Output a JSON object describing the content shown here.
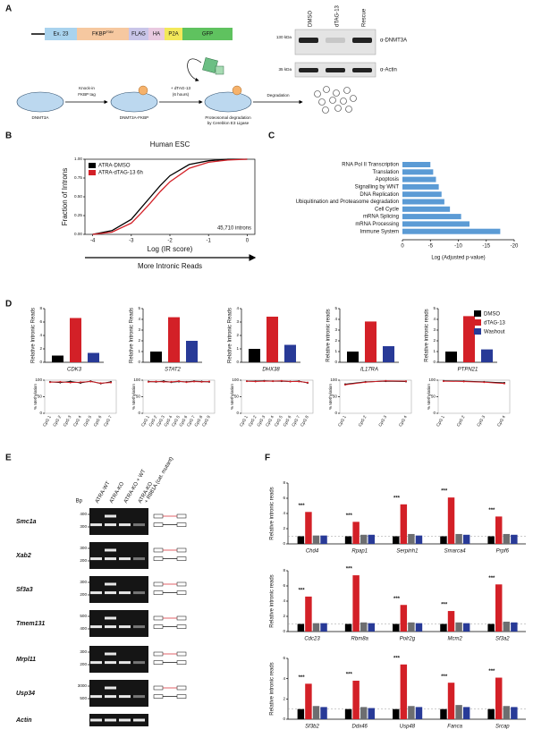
{
  "labels": [
    "A",
    "B",
    "C",
    "D",
    "E",
    "F"
  ],
  "panel_a": {
    "construct": [
      {
        "label": "Ex. 23",
        "color": "#a9d3ee"
      },
      {
        "label": "FKBP",
        "sup": "F36V",
        "color": "#f6c8a0"
      },
      {
        "label": "FLAG",
        "color": "#c9c5e8"
      },
      {
        "label": "HA",
        "color": "#e9c9e0"
      },
      {
        "label": "P2A",
        "color": "#f3e85a"
      },
      {
        "label": "GFP",
        "color": "#5fc25f"
      }
    ],
    "blot": {
      "lanes": [
        "DMSO",
        "dTAG-13",
        "Rescue"
      ],
      "markers": [
        "130 kDa",
        "35 kDa"
      ],
      "antibodies": [
        "α-DNMT3A",
        "α-Actin"
      ]
    },
    "workflow": {
      "states": [
        "DNMT3A",
        "DNMT3A-FKBP"
      ],
      "degradation_label": [
        "Proteosomal degradation",
        "by Cereblon E3 Ligase"
      ],
      "step1": [
        "Knock-in",
        "FKBP tag"
      ],
      "step2": [
        "+ dTAG-13",
        "(6 hours)"
      ],
      "step3": "Degradation"
    }
  },
  "legend_d": {
    "names": [
      "DMSO",
      "dTAG-13",
      "Washout"
    ],
    "colors": [
      "#000000",
      "#d32027",
      "#283a97"
    ]
  },
  "panel_e": {
    "bp_header": "Bp",
    "lanes": [
      [
        "ATRA-WT"
      ],
      [
        "ATRA-KO"
      ],
      [
        "ATRA-KO + WT"
      ],
      [
        "ATRA-KO",
        "+ R881A (cat. mutant)"
      ]
    ],
    "genes": [
      "Smc1a",
      "Xab2",
      "Sf3a3",
      "Tmem131",
      "Mrpl11",
      "Usp34",
      "Actin"
    ],
    "bp": [
      [
        400,
        300
      ],
      [
        300,
        200
      ],
      [
        300,
        200
      ],
      [
        500,
        400
      ],
      [
        300,
        200
      ],
      [
        3000,
        500
      ],
      []
    ]
  },
  "chart_data": [
    {
      "type": "line",
      "title": "Human ESC",
      "xlabel": "Log (IR score)",
      "ylabel": "Fraction of Introns",
      "annotation": "45,710 introns",
      "arrow_label": "More Intronic Reads",
      "x": [
        -4,
        -3.5,
        -3,
        -2.75,
        -2.5,
        -2.25,
        -2,
        -1.5,
        -1,
        -0.5,
        0
      ],
      "series": [
        {
          "name": "ATRA-DMSO",
          "color": "#000000",
          "values": [
            0,
            0.05,
            0.2,
            0.35,
            0.5,
            0.65,
            0.78,
            0.93,
            0.98,
            1,
            1
          ]
        },
        {
          "name": "ATRA-dTAG-13 6h",
          "color": "#d32027",
          "values": [
            0,
            0.03,
            0.15,
            0.28,
            0.42,
            0.57,
            0.7,
            0.88,
            0.96,
            0.99,
            1
          ]
        }
      ],
      "xlim": [
        -4.2,
        0.2
      ],
      "xticks": [
        -4,
        -3,
        -2,
        -1,
        0
      ],
      "ylim": [
        0,
        1
      ],
      "yticks": [
        {
          "value": 0,
          "label": "0.00"
        },
        {
          "value": 0.25,
          "label": "0.25"
        },
        {
          "value": 0.5,
          "label": "0.50"
        },
        {
          "value": 0.75,
          "label": "0.75"
        },
        {
          "value": 1,
          "label": "1.00"
        }
      ]
    },
    {
      "type": "barh",
      "xlabel": "Log (Adjusted p-value)",
      "color": "#5b9bd5",
      "categories": [
        "RNA Pol II Transcription",
        "Translation",
        "Apoptosis",
        "Signalling by WNT",
        "DNA Replication",
        "Ubiquitination and Proteasome degradation",
        "Cell Cycle",
        "mRNA Splicing",
        "mRNA Processing",
        "Immune System"
      ],
      "values": [
        -5,
        -5.5,
        -6,
        -6.5,
        -7,
        -7.5,
        -8.5,
        -10.5,
        -12,
        -17.5
      ],
      "xlim": [
        0,
        -20
      ],
      "xticks": [
        0,
        -5,
        -10,
        -15,
        -20
      ]
    },
    {
      "type": "bar",
      "xlabel": "CDK3",
      "ylabel": "Relative Intronic Reads",
      "values": [
        1,
        6.6,
        1.4
      ],
      "colors": [
        "#000000",
        "#d32027",
        "#283a97"
      ],
      "ylim": [
        0,
        8
      ],
      "yticks": [
        0,
        2,
        4,
        6,
        8
      ]
    },
    {
      "type": "bar",
      "xlabel": "STAT2",
      "ylabel": "Relative Intronic Reads",
      "values": [
        1,
        4.2,
        2
      ],
      "colors": [
        "#000000",
        "#d32027",
        "#283a97"
      ],
      "ylim": [
        0,
        5
      ],
      "yticks": [
        0,
        1,
        2,
        3,
        4,
        5
      ]
    },
    {
      "type": "bar",
      "xlabel": "DHX38",
      "ylabel": "Relative Intronic Reads",
      "values": [
        1,
        3.4,
        1.3
      ],
      "colors": [
        "#000000",
        "#d32027",
        "#283a97"
      ],
      "ylim": [
        0,
        4
      ],
      "yticks": [
        0,
        1,
        2,
        3,
        4
      ]
    },
    {
      "type": "bar",
      "xlabel": "IL17RA",
      "ylabel": "Relative intronic reads",
      "values": [
        1,
        3.8,
        1.5
      ],
      "colors": [
        "#000000",
        "#d32027",
        "#283a97"
      ],
      "ylim": [
        0,
        5
      ],
      "yticks": [
        0,
        1,
        2,
        3,
        4,
        5
      ]
    },
    {
      "type": "bar",
      "xlabel": "PTPN21",
      "ylabel": "Relative intronic reads",
      "values": [
        1,
        4.3,
        1.2
      ],
      "colors": [
        "#000000",
        "#d32027",
        "#283a97"
      ],
      "ylim": [
        0,
        5
      ],
      "yticks": [
        0,
        1,
        2,
        3,
        4,
        5
      ]
    },
    {
      "type": "line",
      "ylabel": "% Methylation",
      "categories": [
        "CpG 1",
        "CpG 2",
        "CpG 3",
        "CpG 4",
        "CpG 5",
        "CpG 6",
        "CpG 7"
      ],
      "series": [
        {
          "color": "#000000",
          "values": [
            95,
            93,
            96,
            92,
            97,
            90,
            95
          ]
        },
        {
          "color": "#d32027",
          "values": [
            94,
            95,
            93,
            94,
            96,
            91,
            93
          ]
        }
      ],
      "ylim": [
        0,
        100
      ],
      "yticks": [
        0,
        50,
        100
      ]
    },
    {
      "type": "line",
      "ylabel": "% Methylation",
      "categories": [
        "CpG 1",
        "CpG 2",
        "CpG 3",
        "CpG 4",
        "CpG 5",
        "CpG 6",
        "CpG 7",
        "CpG 8",
        "CpG 9"
      ],
      "series": [
        {
          "color": "#000000",
          "values": [
            96,
            95,
            97,
            94,
            96,
            95,
            97,
            96,
            95
          ]
        },
        {
          "color": "#d32027",
          "values": [
            95,
            96,
            95,
            95,
            97,
            94,
            96,
            95,
            96
          ]
        }
      ],
      "ylim": [
        0,
        100
      ],
      "yticks": [
        0,
        50,
        100
      ]
    },
    {
      "type": "line",
      "ylabel": "% Methylation",
      "categories": [
        "CpG 1",
        "CpG 2",
        "CpG 3",
        "CpG 4",
        "CpG 5",
        "CpG 6",
        "CpG 7",
        "CpG 8"
      ],
      "series": [
        {
          "color": "#000000",
          "values": [
            97,
            97,
            98,
            97,
            97,
            96,
            97,
            92
          ]
        },
        {
          "color": "#d32027",
          "values": [
            97,
            96,
            97,
            97,
            98,
            96,
            96,
            93
          ]
        }
      ],
      "ylim": [
        0,
        100
      ],
      "yticks": [
        0,
        50,
        100
      ]
    },
    {
      "type": "line",
      "ylabel": "% Methylation",
      "categories": [
        "CpG 1",
        "CpG 2",
        "CpG 3",
        "CpG 4"
      ],
      "series": [
        {
          "color": "#000000",
          "values": [
            88,
            95,
            97,
            96
          ]
        },
        {
          "color": "#d32027",
          "values": [
            86,
            94,
            98,
            97
          ]
        }
      ],
      "ylim": [
        0,
        100
      ],
      "yticks": [
        0,
        50,
        100
      ]
    },
    {
      "type": "line",
      "ylabel": "% Methylation",
      "categories": [
        "CpG 1",
        "CpG 2",
        "CpG 3",
        "CpG 4"
      ],
      "series": [
        {
          "color": "#000000",
          "values": [
            98,
            97,
            95,
            92
          ]
        },
        {
          "color": "#d32027",
          "values": [
            97,
            96,
            94,
            90
          ]
        }
      ],
      "ylim": [
        0,
        100
      ],
      "yticks": [
        0,
        50,
        100
      ]
    },
    {
      "type": "grouped_bar",
      "ylabel": "Relative intronic reads",
      "categories": [
        "Chd4",
        "Rpap1",
        "Serpinh1",
        "Smarca4",
        "Prpf6"
      ],
      "annotations": [
        "***",
        "***",
        "***",
        "***",
        "***"
      ],
      "series": [
        {
          "color": "#000000",
          "values": [
            1,
            1,
            1,
            1,
            1
          ]
        },
        {
          "color": "#d32027",
          "values": [
            4.2,
            2.9,
            5.2,
            6.1,
            3.6
          ]
        },
        {
          "color": "#6d6e70",
          "values": [
            1.1,
            1.2,
            1.3,
            1.3,
            1.3
          ]
        },
        {
          "color": "#283a97",
          "values": [
            1.1,
            1.2,
            1.1,
            1.2,
            1.2
          ]
        }
      ],
      "ylim": [
        0,
        8
      ],
      "yticks": [
        0,
        2,
        4,
        6,
        8
      ]
    },
    {
      "type": "grouped_bar",
      "ylabel": "Relative intronic reads",
      "categories": [
        "Cdc23",
        "Rbm8a",
        "Polr2g",
        "Mcm2",
        "Sf3a2"
      ],
      "annotations": [
        "***",
        "***",
        "***",
        "***",
        "***"
      ],
      "series": [
        {
          "color": "#000000",
          "values": [
            1,
            1,
            1,
            1,
            1
          ]
        },
        {
          "color": "#d32027",
          "values": [
            4.6,
            7.4,
            3.5,
            2.7,
            6.2
          ]
        },
        {
          "color": "#6d6e70",
          "values": [
            1.1,
            1.2,
            1.2,
            1.2,
            1.3
          ]
        },
        {
          "color": "#283a97",
          "values": [
            1.1,
            1.1,
            1.1,
            1.1,
            1.2
          ]
        }
      ],
      "ylim": [
        0,
        8
      ],
      "yticks": [
        0,
        2,
        4,
        6,
        8
      ]
    },
    {
      "type": "grouped_bar",
      "ylabel": "Relative intronic reads",
      "categories": [
        "Sf3b2",
        "Ddx46",
        "Usp48",
        "Fanca",
        "Srcap"
      ],
      "annotations": [
        "***",
        "***",
        "***",
        "***",
        "***"
      ],
      "series": [
        {
          "color": "#000000",
          "values": [
            1,
            1,
            1,
            1,
            1
          ]
        },
        {
          "color": "#d32027",
          "values": [
            3.5,
            3.8,
            5.4,
            3.6,
            4.1
          ]
        },
        {
          "color": "#6d6e70",
          "values": [
            1.3,
            1.2,
            1.3,
            1.4,
            1.3
          ]
        },
        {
          "color": "#283a97",
          "values": [
            1.2,
            1.1,
            1.2,
            1.2,
            1.2
          ]
        }
      ],
      "ylim": [
        0,
        6
      ],
      "yticks": [
        0,
        2,
        4,
        6
      ]
    }
  ]
}
